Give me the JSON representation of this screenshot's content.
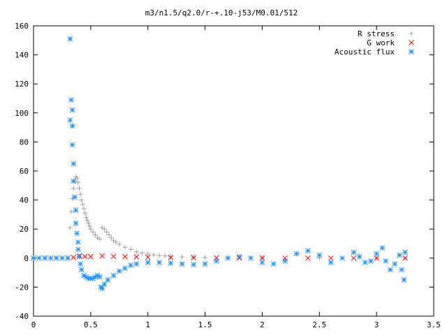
{
  "chart_data": {
    "type": "scatter",
    "title": "m3/n1.5/q2.0/r-+.10-j53/M0.01/512",
    "xlabel": "",
    "ylabel": "",
    "xlim": [
      0,
      3.5
    ],
    "ylim": [
      -40,
      160
    ],
    "x_ticks": [
      "0",
      "0.5",
      "1",
      "1.5",
      "2",
      "2.5",
      "3",
      "3.5"
    ],
    "y_ticks": [
      "-40",
      "-20",
      "0",
      "20",
      "40",
      "60",
      "80",
      "100",
      "120",
      "140",
      "160"
    ],
    "x_tick_values": [
      0,
      0.5,
      1,
      1.5,
      2,
      2.5,
      3,
      3.5
    ],
    "y_tick_values": [
      -40,
      -20,
      0,
      20,
      40,
      60,
      80,
      100,
      120,
      140,
      160
    ],
    "grid": false,
    "legend_position": "top-right",
    "series": [
      {
        "name": "R stress",
        "marker": "plus",
        "color": "#a0a0a0",
        "points": [
          [
            0.32,
            21
          ],
          [
            0.33,
            32
          ],
          [
            0.34,
            41
          ],
          [
            0.35,
            48
          ],
          [
            0.36,
            53
          ],
          [
            0.37,
            56
          ],
          [
            0.38,
            55
          ],
          [
            0.39,
            52
          ],
          [
            0.4,
            48
          ],
          [
            0.41,
            44
          ],
          [
            0.42,
            40
          ],
          [
            0.43,
            37
          ],
          [
            0.44,
            34
          ],
          [
            0.45,
            31
          ],
          [
            0.46,
            28
          ],
          [
            0.47,
            26
          ],
          [
            0.48,
            24
          ],
          [
            0.49,
            22
          ],
          [
            0.5,
            20
          ],
          [
            0.52,
            18
          ],
          [
            0.54,
            16
          ],
          [
            0.56,
            14
          ],
          [
            0.58,
            13
          ],
          [
            0.6,
            21
          ],
          [
            0.62,
            20
          ],
          [
            0.64,
            18
          ],
          [
            0.66,
            16
          ],
          [
            0.68,
            14
          ],
          [
            0.7,
            12
          ],
          [
            0.72,
            11
          ],
          [
            0.75,
            9.5
          ],
          [
            0.8,
            7.5
          ],
          [
            0.85,
            6
          ],
          [
            0.9,
            4.5
          ],
          [
            0.95,
            3.5
          ],
          [
            1.0,
            2.8
          ],
          [
            1.05,
            2.2
          ],
          [
            1.1,
            1.8
          ],
          [
            1.15,
            1.5
          ],
          [
            1.2,
            1.2
          ],
          [
            1.3,
            0.8
          ],
          [
            1.4,
            0.6
          ],
          [
            1.5,
            0.4
          ],
          [
            1.7,
            0.2
          ],
          [
            2.0,
            0.1
          ],
          [
            2.5,
            0
          ],
          [
            3.0,
            0
          ],
          [
            3.25,
            0
          ]
        ]
      },
      {
        "name": "G work",
        "marker": "cross",
        "color": "#ff0000",
        "points": [
          [
            0.0,
            0
          ],
          [
            0.1,
            0
          ],
          [
            0.2,
            0
          ],
          [
            0.3,
            0
          ],
          [
            0.35,
            0.5
          ],
          [
            0.4,
            1.5
          ],
          [
            0.45,
            1.2
          ],
          [
            0.5,
            1.0
          ],
          [
            0.6,
            1.5
          ],
          [
            0.7,
            1.2
          ],
          [
            0.8,
            1.0
          ],
          [
            0.9,
            0.8
          ],
          [
            1.0,
            0.6
          ],
          [
            1.2,
            0.4
          ],
          [
            1.4,
            0.3
          ],
          [
            1.6,
            0.2
          ],
          [
            1.8,
            0.1
          ],
          [
            2.0,
            0.1
          ],
          [
            2.2,
            0
          ],
          [
            2.4,
            0
          ],
          [
            2.6,
            0
          ],
          [
            2.8,
            0
          ],
          [
            3.0,
            0
          ],
          [
            3.25,
            0
          ]
        ]
      },
      {
        "name": "Acoustic flux",
        "marker": "star",
        "color": "#1e90ff",
        "points": [
          [
            0.0,
            0
          ],
          [
            0.05,
            0
          ],
          [
            0.1,
            0
          ],
          [
            0.15,
            0
          ],
          [
            0.2,
            0
          ],
          [
            0.25,
            0
          ],
          [
            0.3,
            0
          ],
          [
            0.32,
            151
          ],
          [
            0.33,
            109
          ],
          [
            0.34,
            102
          ],
          [
            0.32,
            95
          ],
          [
            0.34,
            91
          ],
          [
            0.34,
            78
          ],
          [
            0.35,
            65
          ],
          [
            0.35,
            53
          ],
          [
            0.36,
            42
          ],
          [
            0.37,
            33
          ],
          [
            0.37,
            24
          ],
          [
            0.38,
            17
          ],
          [
            0.39,
            11
          ],
          [
            0.39,
            6
          ],
          [
            0.4,
            1
          ],
          [
            0.41,
            -4
          ],
          [
            0.42,
            -8
          ],
          [
            0.44,
            -12
          ],
          [
            0.46,
            -13
          ],
          [
            0.48,
            -14
          ],
          [
            0.5,
            -14
          ],
          [
            0.52,
            -14
          ],
          [
            0.54,
            -13
          ],
          [
            0.56,
            -12
          ],
          [
            0.58,
            -13
          ],
          [
            0.59,
            -20
          ],
          [
            0.6,
            -21
          ],
          [
            0.62,
            -18
          ],
          [
            0.65,
            -15
          ],
          [
            0.7,
            -12
          ],
          [
            0.75,
            -9
          ],
          [
            0.8,
            -7
          ],
          [
            0.85,
            -5
          ],
          [
            0.9,
            -4
          ],
          [
            1.0,
            -3
          ],
          [
            1.1,
            -3
          ],
          [
            1.2,
            -3.5
          ],
          [
            1.3,
            -4
          ],
          [
            1.4,
            -4.5
          ],
          [
            1.5,
            -4
          ],
          [
            1.6,
            -2
          ],
          [
            1.7,
            0
          ],
          [
            1.8,
            1
          ],
          [
            1.9,
            0
          ],
          [
            2.0,
            -3
          ],
          [
            2.1,
            -4
          ],
          [
            2.2,
            -2
          ],
          [
            2.3,
            3
          ],
          [
            2.4,
            5
          ],
          [
            2.5,
            2
          ],
          [
            2.6,
            -3
          ],
          [
            2.7,
            0
          ],
          [
            2.8,
            4
          ],
          [
            2.85,
            1
          ],
          [
            2.9,
            -3
          ],
          [
            2.95,
            -2
          ],
          [
            3.0,
            3
          ],
          [
            3.05,
            7
          ],
          [
            3.08,
            -2
          ],
          [
            3.12,
            -8
          ],
          [
            3.16,
            -4
          ],
          [
            3.2,
            2
          ],
          [
            3.22,
            -8
          ],
          [
            3.24,
            -15
          ],
          [
            3.25,
            4
          ]
        ]
      }
    ]
  }
}
